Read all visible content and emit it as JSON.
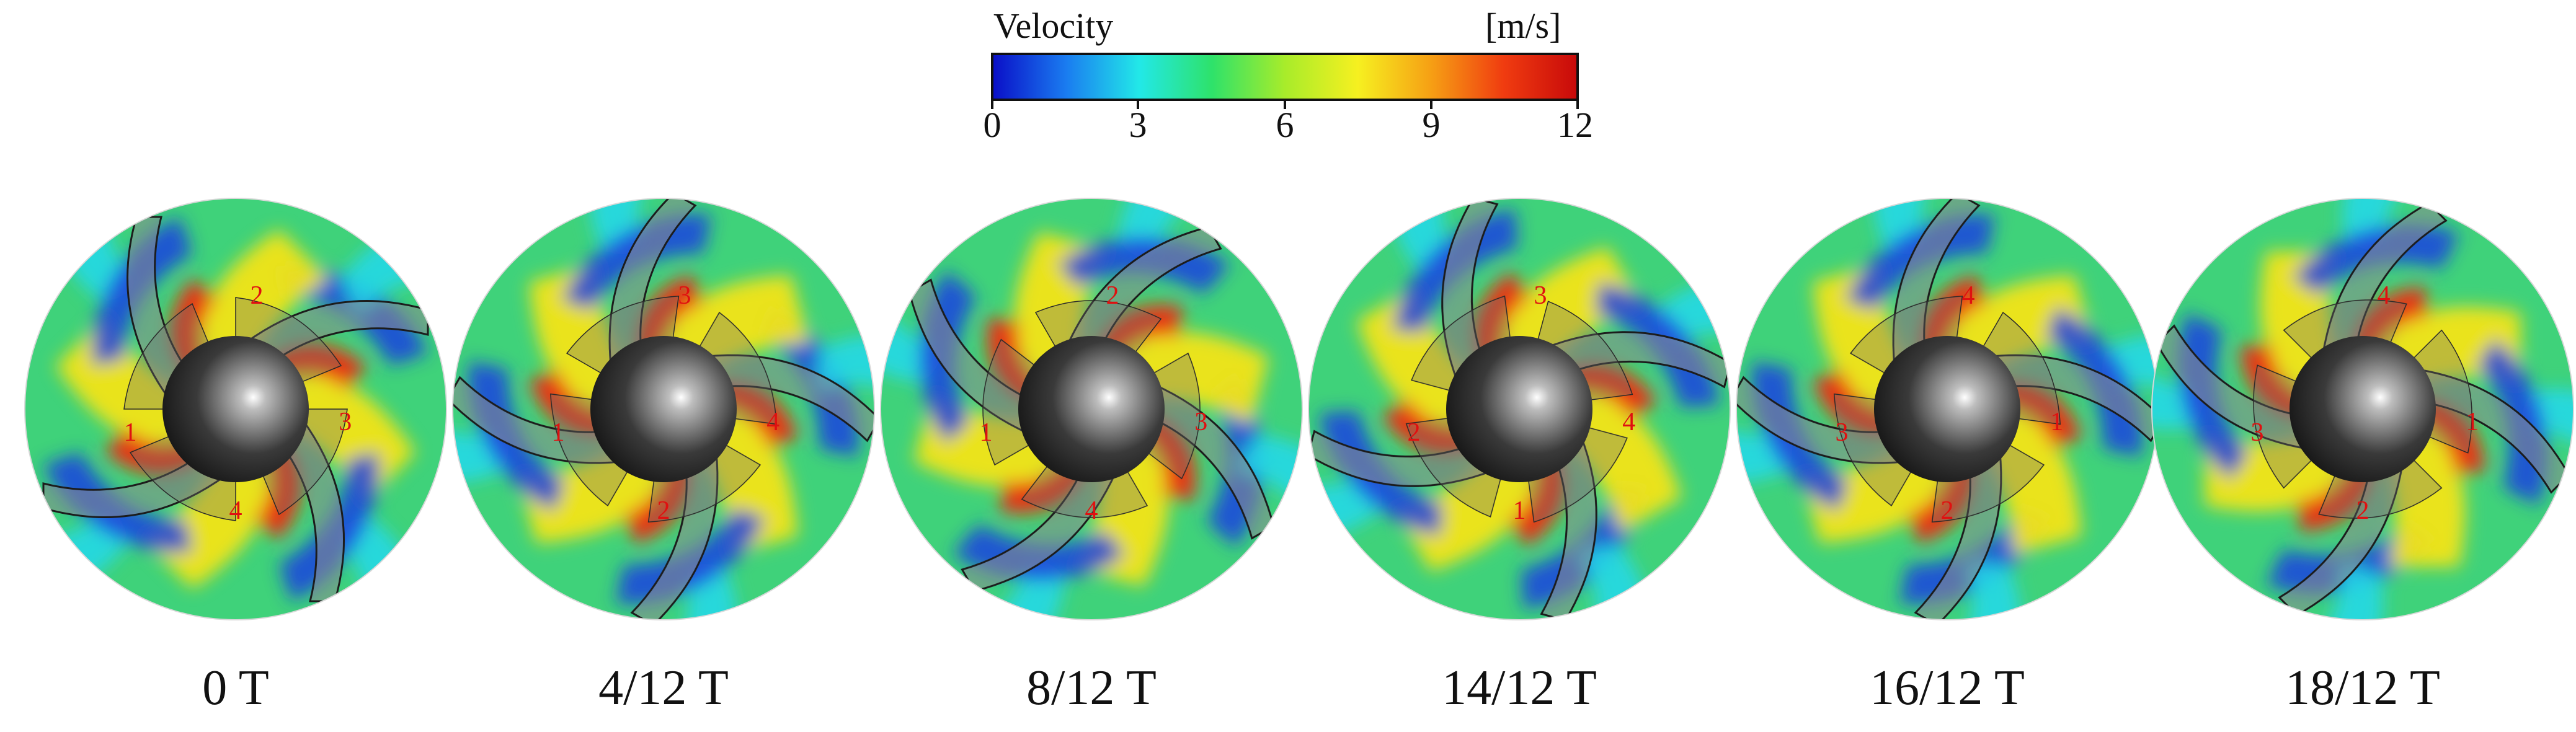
{
  "legend": {
    "title": "Velocity",
    "unit": "[m/s]",
    "ticks": [
      "0",
      "3",
      "6",
      "9",
      "12"
    ],
    "colors": [
      "#0a10c8",
      "#1a7cf0",
      "#22e8e8",
      "#2ee26a",
      "#a8ec2a",
      "#f6f020",
      "#f6a014",
      "#f03c10",
      "#c80a0a"
    ]
  },
  "panels": [
    {
      "time": "0 T",
      "rotation": 0,
      "blade_labels": [
        "1",
        "2",
        "3",
        "4"
      ]
    },
    {
      "time": "4/12 T",
      "rotation": 30,
      "blade_labels": [
        "1",
        "3",
        "4",
        "2"
      ]
    },
    {
      "time": "8/12 T",
      "rotation": 60,
      "blade_labels": [
        "1",
        "2",
        "3",
        "4"
      ]
    },
    {
      "time": "14/12 T",
      "rotation": 105,
      "blade_labels": [
        "2",
        "3",
        "4",
        "1"
      ]
    },
    {
      "time": "16/12 T",
      "rotation": 120,
      "blade_labels": [
        "3",
        "4",
        "1",
        "2"
      ]
    },
    {
      "time": "18/12 T",
      "rotation": 135,
      "blade_labels": [
        "3",
        "4",
        "1",
        "2"
      ]
    }
  ]
}
